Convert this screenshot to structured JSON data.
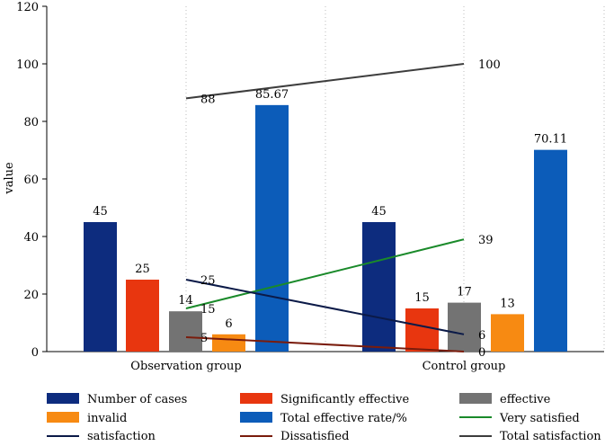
{
  "chart_data": {
    "type": "bar",
    "title": "",
    "xlabel": "",
    "ylabel": "value",
    "ylim": [
      0,
      120
    ],
    "yticks": [
      0,
      20,
      40,
      60,
      80,
      100,
      120
    ],
    "grid": "vertical dotted lines",
    "categories": [
      "Observation group",
      "Control group"
    ],
    "bar_series": [
      {
        "name": "Number of cases",
        "color": "#0d2c7e",
        "values": [
          45,
          45
        ],
        "labels": [
          "45",
          "45"
        ]
      },
      {
        "name": "Significantly effective",
        "color": "#e8360f",
        "values": [
          25,
          15
        ],
        "labels": [
          "25",
          "15"
        ]
      },
      {
        "name": "effective",
        "color": "#737373",
        "values": [
          14,
          17
        ],
        "labels": [
          "14",
          "17"
        ]
      },
      {
        "name": "invalid",
        "color": "#f78a12",
        "values": [
          6,
          13
        ],
        "labels": [
          "6",
          "13"
        ]
      },
      {
        "name": "Total effective rate/%",
        "color": "#0c5cb9",
        "values": [
          85.67,
          70.11
        ],
        "labels": [
          "85.67",
          "70.11"
        ]
      }
    ],
    "line_series": [
      {
        "name": "Very satisfied",
        "color": "#1a8a2a",
        "values": [
          15,
          39
        ],
        "labels": [
          "15",
          "39"
        ]
      },
      {
        "name": "satisfaction",
        "color": "#0b1a48",
        "values": [
          25,
          6
        ],
        "labels": [
          "25",
          "6"
        ]
      },
      {
        "name": "Dissatisfied",
        "color": "#7a1c0c",
        "values": [
          5,
          0
        ],
        "labels": [
          "5",
          "0"
        ]
      },
      {
        "name": "Total satisfaction",
        "color": "#3d3d3d",
        "values": [
          88,
          100
        ],
        "labels": [
          "88",
          "100"
        ]
      }
    ],
    "legend": {
      "placement": "bottom",
      "order": [
        "Number of cases",
        "Significantly effective",
        "effective",
        "invalid",
        "Total effective rate/%",
        "Very satisfied",
        "satisfaction",
        "Dissatisfied",
        "Total satisfaction"
      ]
    }
  }
}
